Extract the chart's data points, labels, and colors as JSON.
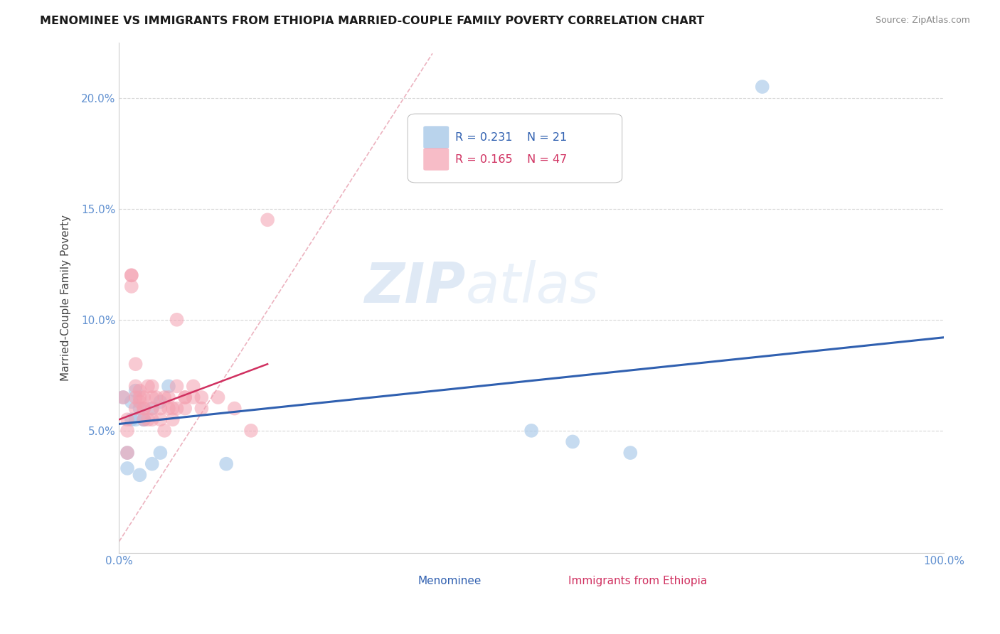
{
  "title": "MENOMINEE VS IMMIGRANTS FROM ETHIOPIA MARRIED-COUPLE FAMILY POVERTY CORRELATION CHART",
  "source": "Source: ZipAtlas.com",
  "ylabel": "Married-Couple Family Poverty",
  "xlim": [
    0,
    1.0
  ],
  "ylim": [
    -0.005,
    0.225
  ],
  "yticks": [
    0.05,
    0.1,
    0.15,
    0.2
  ],
  "ytick_labels": [
    "5.0%",
    "10.0%",
    "15.0%",
    "20.0%"
  ],
  "legend_r_blue": "R = 0.231",
  "legend_n_blue": "N = 21",
  "legend_r_pink": "R = 0.165",
  "legend_n_pink": "N = 47",
  "blue_color": "#a8c8e8",
  "pink_color": "#f4a0b0",
  "blue_line_color": "#3060b0",
  "pink_line_color": "#d03060",
  "grid_color": "#d8d8d8",
  "tick_color": "#6090d0",
  "watermark_zip": "ZIP",
  "watermark_atlas": "atlas",
  "blue_scatter_x": [
    0.005,
    0.01,
    0.01,
    0.015,
    0.015,
    0.02,
    0.02,
    0.025,
    0.025,
    0.03,
    0.03,
    0.04,
    0.04,
    0.05,
    0.05,
    0.06,
    0.13,
    0.5,
    0.55,
    0.62,
    0.78
  ],
  "blue_scatter_y": [
    0.065,
    0.04,
    0.033,
    0.063,
    0.055,
    0.068,
    0.055,
    0.06,
    0.03,
    0.055,
    0.055,
    0.06,
    0.035,
    0.063,
    0.04,
    0.07,
    0.035,
    0.05,
    0.045,
    0.04,
    0.205
  ],
  "pink_scatter_x": [
    0.005,
    0.01,
    0.01,
    0.01,
    0.015,
    0.015,
    0.015,
    0.02,
    0.02,
    0.02,
    0.02,
    0.025,
    0.025,
    0.025,
    0.03,
    0.03,
    0.03,
    0.03,
    0.035,
    0.035,
    0.04,
    0.04,
    0.04,
    0.04,
    0.045,
    0.05,
    0.05,
    0.055,
    0.055,
    0.06,
    0.06,
    0.065,
    0.065,
    0.07,
    0.07,
    0.07,
    0.08,
    0.08,
    0.08,
    0.09,
    0.09,
    0.1,
    0.1,
    0.12,
    0.14,
    0.16,
    0.18
  ],
  "pink_scatter_y": [
    0.065,
    0.04,
    0.05,
    0.055,
    0.12,
    0.12,
    0.115,
    0.08,
    0.07,
    0.065,
    0.06,
    0.068,
    0.063,
    0.065,
    0.06,
    0.055,
    0.06,
    0.065,
    0.055,
    0.07,
    0.06,
    0.055,
    0.065,
    0.07,
    0.065,
    0.06,
    0.055,
    0.05,
    0.065,
    0.06,
    0.065,
    0.06,
    0.055,
    0.07,
    0.06,
    0.1,
    0.065,
    0.065,
    0.06,
    0.07,
    0.065,
    0.065,
    0.06,
    0.065,
    0.06,
    0.05,
    0.145
  ],
  "blue_trend_x": [
    0.0,
    1.0
  ],
  "blue_trend_y": [
    0.053,
    0.092
  ],
  "pink_trend_x": [
    0.0,
    0.18
  ],
  "pink_trend_y": [
    0.055,
    0.08
  ],
  "diag_line_x": [
    0.0,
    0.38
  ],
  "diag_line_y": [
    0.0,
    0.22
  ]
}
